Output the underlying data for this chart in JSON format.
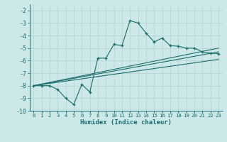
{
  "xlabel": "Humidex (Indice chaleur)",
  "background_color": "#cce8e8",
  "grid_color": "#b8d4d4",
  "line_color": "#1a6b6b",
  "xlim": [
    -0.5,
    23.5
  ],
  "ylim": [
    -10.0,
    -1.5
  ],
  "xticks": [
    0,
    1,
    2,
    3,
    4,
    5,
    6,
    7,
    8,
    9,
    10,
    11,
    12,
    13,
    14,
    15,
    16,
    17,
    18,
    19,
    20,
    21,
    22,
    23
  ],
  "yticks": [
    -10,
    -9,
    -8,
    -7,
    -6,
    -5,
    -4,
    -3,
    -2
  ],
  "series1_x": [
    0,
    1,
    2,
    3,
    4,
    5,
    6,
    7,
    8,
    9,
    10,
    11,
    12,
    13,
    14,
    15,
    16,
    17,
    18,
    19,
    20,
    21,
    22,
    23
  ],
  "series1_y": [
    -8.0,
    -8.0,
    -8.0,
    -8.3,
    -9.0,
    -9.5,
    -7.9,
    -8.5,
    -5.8,
    -5.8,
    -4.7,
    -4.8,
    -2.8,
    -3.0,
    -3.8,
    -4.5,
    -4.2,
    -4.8,
    -4.85,
    -5.0,
    -5.0,
    -5.3,
    -5.4,
    -5.45
  ],
  "series2_x": [
    0,
    23
  ],
  "series2_y": [
    -8.0,
    -5.0
  ],
  "series3_x": [
    0,
    23
  ],
  "series3_y": [
    -8.0,
    -5.3
  ],
  "series4_x": [
    0,
    23
  ],
  "series4_y": [
    -8.0,
    -5.9
  ]
}
